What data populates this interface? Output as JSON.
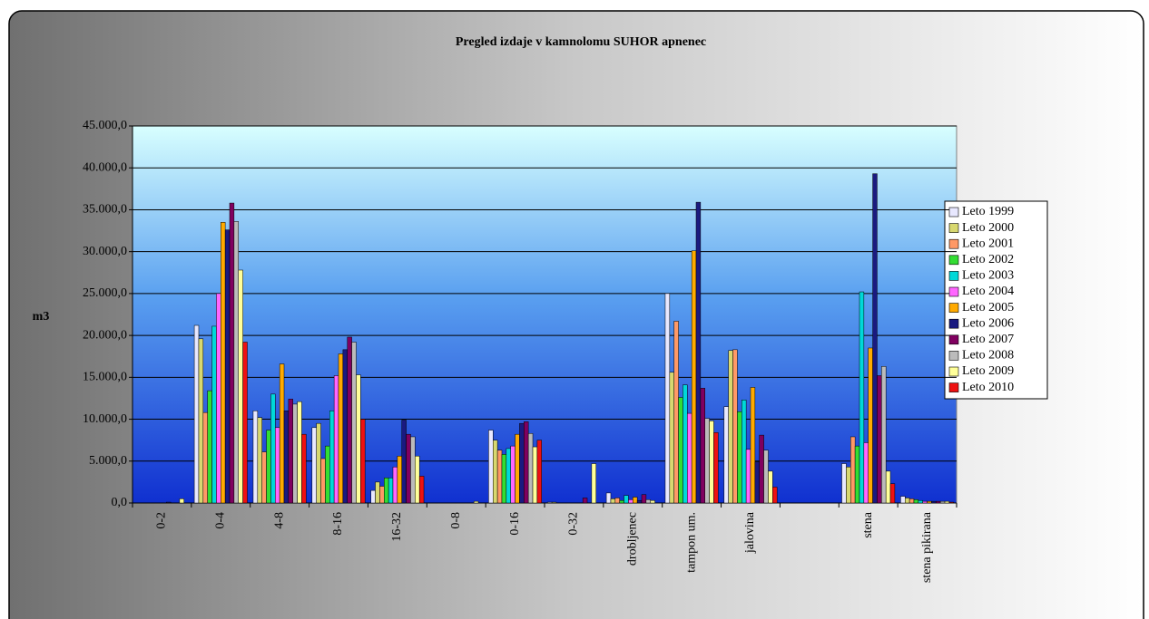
{
  "chart_data": {
    "type": "bar",
    "title": "Pregled izdaje v kamnolomu SUHOR apnenec",
    "ylabel": "m3",
    "categories": [
      "0-2",
      "0-4",
      "4-8",
      "8-16",
      "16-32",
      "0-8",
      "0-16",
      "0-32",
      "drobljenec",
      "tampon um.",
      "jalovina",
      null,
      "stena",
      "stena pikirana"
    ],
    "ylim": [
      0,
      45000
    ],
    "yticks": [
      {
        "value": 0,
        "label": "0,0"
      },
      {
        "value": 5000,
        "label": "5.000,0"
      },
      {
        "value": 10000,
        "label": "10.000,0"
      },
      {
        "value": 15000,
        "label": "15.000,0"
      },
      {
        "value": 20000,
        "label": "20.000,0"
      },
      {
        "value": 25000,
        "label": "25.000,0"
      },
      {
        "value": 30000,
        "label": "30.000,0"
      },
      {
        "value": 35000,
        "label": "35.000,0"
      },
      {
        "value": 40000,
        "label": "40.000,0"
      },
      {
        "value": 45000,
        "label": "45.000,0"
      }
    ],
    "grid": true,
    "legend": "right",
    "series": [
      {
        "name": "Leto 1999",
        "color": "#e8e8ff",
        "values": [
          0,
          21200,
          11000,
          9000,
          1500,
          0,
          8700,
          100,
          1200,
          25000,
          11500,
          0,
          4700,
          800
        ]
      },
      {
        "name": "Leto 2000",
        "color": "#d8d870",
        "values": [
          0,
          19600,
          10200,
          9500,
          2500,
          0,
          7500,
          100,
          500,
          15600,
          18200,
          0,
          4300,
          600
        ]
      },
      {
        "name": "Leto 2001",
        "color": "#ff9966",
        "values": [
          0,
          10800,
          6100,
          5300,
          2000,
          0,
          6300,
          0,
          600,
          21700,
          18300,
          0,
          7900,
          500
        ]
      },
      {
        "name": "Leto 2002",
        "color": "#33dd33",
        "values": [
          0,
          13400,
          8700,
          6800,
          3000,
          0,
          5800,
          0,
          300,
          12600,
          10900,
          0,
          6800,
          400
        ]
      },
      {
        "name": "Leto 2003",
        "color": "#00d8d8",
        "values": [
          0,
          21100,
          13000,
          11000,
          3000,
          0,
          6500,
          0,
          900,
          14100,
          12300,
          0,
          25200,
          300
        ]
      },
      {
        "name": "Leto 2004",
        "color": "#ff66ff",
        "values": [
          0,
          25000,
          9000,
          15200,
          4300,
          0,
          6800,
          0,
          400,
          10700,
          6400,
          0,
          7200,
          200
        ]
      },
      {
        "name": "Leto 2005",
        "color": "#ffaa00",
        "values": [
          0,
          33500,
          16600,
          17800,
          5600,
          0,
          8200,
          0,
          700,
          30100,
          13800,
          0,
          18500,
          200
        ]
      },
      {
        "name": "Leto 2006",
        "color": "#1a1a80",
        "values": [
          100,
          32600,
          11000,
          18300,
          9900,
          0,
          9500,
          0,
          300,
          35900,
          4900,
          0,
          39300,
          200
        ]
      },
      {
        "name": "Leto 2007",
        "color": "#800060",
        "values": [
          0,
          35800,
          12400,
          19800,
          8200,
          0,
          9700,
          600,
          1000,
          13700,
          8100,
          0,
          15200,
          200
        ]
      },
      {
        "name": "Leto 2008",
        "color": "#bbbbbb",
        "values": [
          0,
          33600,
          11800,
          19200,
          7900,
          0,
          8300,
          0,
          400,
          10100,
          6300,
          0,
          16300,
          200
        ]
      },
      {
        "name": "Leto 2009",
        "color": "#ffff99",
        "values": [
          500,
          27800,
          12100,
          15300,
          5600,
          200,
          6700,
          4700,
          300,
          9800,
          3800,
          0,
          3800,
          200
        ]
      },
      {
        "name": "Leto 2010",
        "color": "#ee1111",
        "values": [
          0,
          19200,
          8200,
          10000,
          3200,
          0,
          7500,
          0,
          0,
          8400,
          1900,
          0,
          2300,
          100
        ]
      }
    ]
  }
}
